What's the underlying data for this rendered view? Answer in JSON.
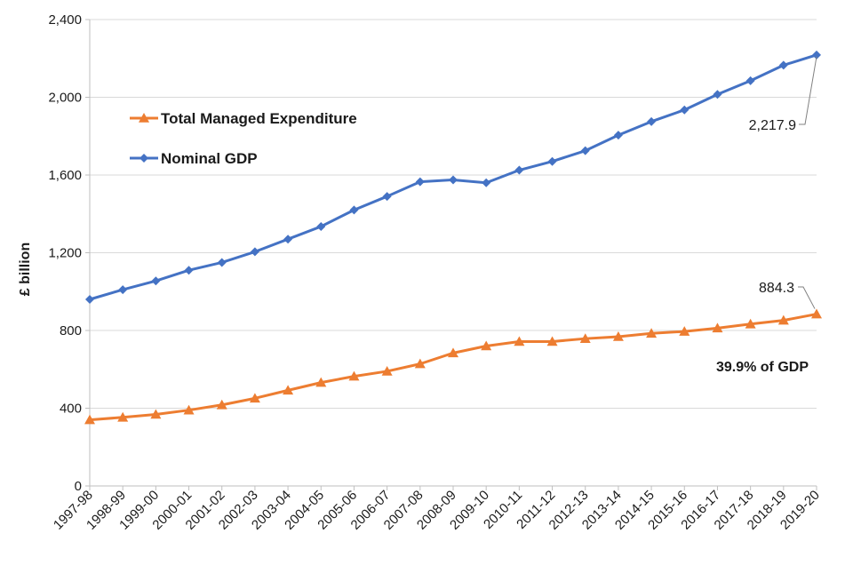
{
  "chart_data": {
    "type": "line",
    "title": "",
    "xlabel": "",
    "ylabel": "£ billion",
    "ylim": [
      0,
      2400
    ],
    "y_ticks": [
      0,
      400,
      800,
      1200,
      1600,
      2000,
      2400
    ],
    "y_tick_labels": [
      "0",
      "400",
      "800",
      "1,200",
      "1,600",
      "2,000",
      "2,400"
    ],
    "grid": "horizontal",
    "legend_position": "left",
    "categories": [
      "1997-98",
      "1998-99",
      "1999-00",
      "2000-01",
      "2001-02",
      "2002-03",
      "2003-04",
      "2004-05",
      "2005-06",
      "2006-07",
      "2007-08",
      "2008-09",
      "2009-10",
      "2010-11",
      "2011-12",
      "2012-13",
      "2013-14",
      "2014-15",
      "2015-16",
      "2016-17",
      "2017-18",
      "2018-19",
      "2019-20"
    ],
    "series": [
      {
        "name": "Total Managed Expenditure",
        "color": "#ED7D31",
        "marker": "triangle",
        "values": [
          340,
          353,
          368,
          390,
          417,
          451,
          492,
          532,
          564,
          590,
          628,
          684,
          720,
          743,
          743,
          758,
          768,
          785,
          795,
          812,
          833,
          852,
          884.3
        ]
      },
      {
        "name": "Nominal GDP",
        "color": "#4472C4",
        "marker": "diamond",
        "values": [
          960,
          1010,
          1055,
          1110,
          1150,
          1205,
          1270,
          1335,
          1420,
          1490,
          1565,
          1575,
          1560,
          1625,
          1670,
          1725,
          1805,
          1875,
          1935,
          2015,
          2085,
          2165,
          2217.9
        ]
      }
    ],
    "annotations": [
      {
        "text": "2,217.9",
        "series": "Nominal GDP",
        "category": "2019-20"
      },
      {
        "text": "884.3",
        "series": "Total Managed Expenditure",
        "category": "2019-20"
      },
      {
        "text": "39.9% of GDP",
        "bold": true
      }
    ]
  }
}
